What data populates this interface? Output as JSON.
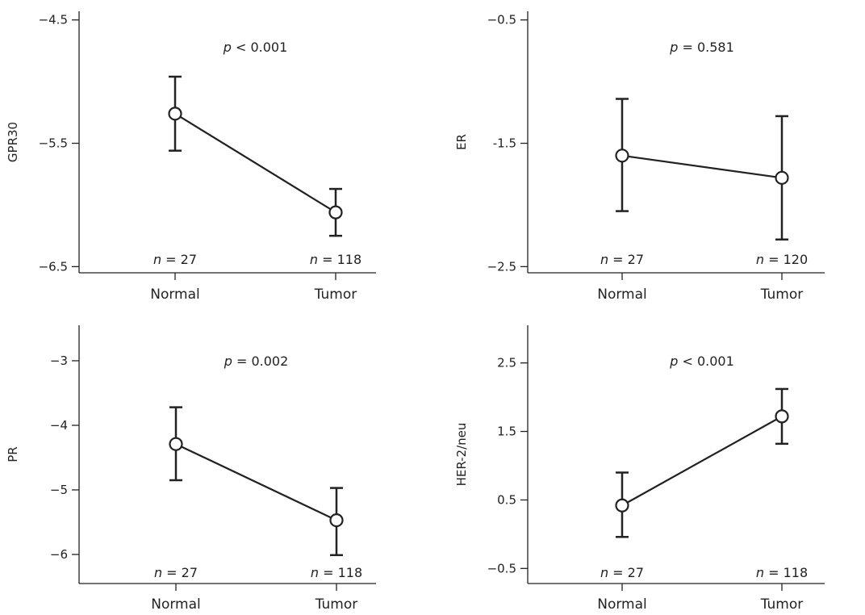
{
  "chart_data": [
    {
      "type": "line",
      "ylabel": "GPR30",
      "categories": [
        "Normal",
        "Tumor"
      ],
      "values": [
        -5.26,
        -6.06
      ],
      "error_low": [
        -5.56,
        -6.25
      ],
      "error_high": [
        -4.96,
        -5.87
      ],
      "ylim": [
        -6.55,
        -4.43
      ],
      "yticks": [
        -6.5,
        -5.5,
        -4.5
      ],
      "ytick_labels": [
        "−6.5",
        "−5.5",
        "−4.5"
      ],
      "p_prefix": "p",
      "p_text": " < 0.001",
      "n_labels": [
        {
          "prefix": "n",
          "text": " = 27"
        },
        {
          "prefix": "n",
          "text": " = 118"
        }
      ]
    },
    {
      "type": "line",
      "ylabel": "ER",
      "categories": [
        "Normal",
        "Tumor"
      ],
      "values": [
        -1.6,
        -1.78
      ],
      "error_low": [
        -2.05,
        -2.28
      ],
      "error_high": [
        -1.14,
        -1.28
      ],
      "ylim": [
        -2.55,
        -0.43
      ],
      "yticks": [
        -2.5,
        -1.5,
        -0.5
      ],
      "ytick_labels": [
        "−2.5",
        "-1.5",
        "−0.5"
      ],
      "p_prefix": "p",
      "p_text": " = 0.581",
      "n_labels": [
        {
          "prefix": "n",
          "text": " = 27"
        },
        {
          "prefix": "n",
          "text": " = 120"
        }
      ]
    },
    {
      "type": "line",
      "ylabel": "PR",
      "categories": [
        "Normal",
        "Tumor"
      ],
      "values": [
        -4.29,
        -5.47
      ],
      "error_low": [
        -4.85,
        -6.01
      ],
      "error_high": [
        -3.72,
        -4.97
      ],
      "ylim": [
        -6.45,
        -2.45
      ],
      "yticks": [
        -6,
        -5,
        -4,
        -3
      ],
      "ytick_labels": [
        "−6",
        "−5",
        "−4",
        "−3"
      ],
      "p_prefix": "p",
      "p_text": " = 0.002",
      "n_labels": [
        {
          "prefix": "n",
          "text": " = 27"
        },
        {
          "prefix": "n",
          "text": " = 118"
        }
      ]
    },
    {
      "type": "line",
      "ylabel": "HER-2/neu",
      "categories": [
        "Normal",
        "Tumor"
      ],
      "values": [
        0.42,
        1.72
      ],
      "error_low": [
        -0.04,
        1.32
      ],
      "error_high": [
        0.9,
        2.12
      ],
      "ylim": [
        -0.72,
        3.05
      ],
      "yticks": [
        -0.5,
        0.5,
        1.5,
        2.5
      ],
      "ytick_labels": [
        "−0.5",
        "0.5",
        "1.5",
        "2.5"
      ],
      "p_prefix": "p",
      "p_text": " < 0.001",
      "n_labels": [
        {
          "prefix": "n",
          "text": " = 27"
        },
        {
          "prefix": "n",
          "text": " = 118"
        }
      ]
    }
  ]
}
